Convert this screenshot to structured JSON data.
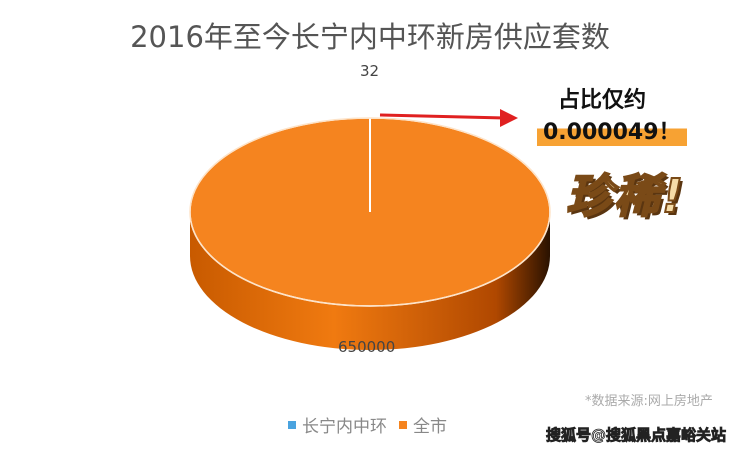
{
  "chart_data": {
    "type": "pie",
    "title": "2016年至今长宁内中环新房供应套数",
    "categories": [
      "长宁内中环",
      "全市"
    ],
    "values": [
      32,
      650000
    ],
    "data_labels": [
      "32",
      "650000"
    ],
    "colors": [
      "#4aa3df",
      "#f5841f"
    ],
    "legend_placement": "bottom",
    "style": "3d"
  },
  "annotation": {
    "line1": "占比仅约",
    "line2": "0.000049！",
    "rare": "珍稀!",
    "arrow_color": "#e02020"
  },
  "source": "*数据来源:网上房地产",
  "watermark": "搜狐号@搜狐黑点嘉峪关站"
}
